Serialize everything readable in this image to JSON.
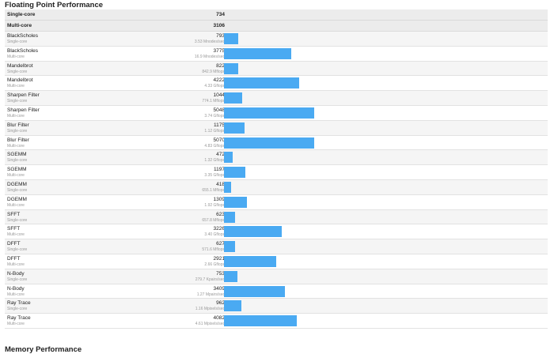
{
  "title": "Floating Point Performance",
  "summary": [
    {
      "label": "Single-core",
      "score": "734"
    },
    {
      "label": "Multi-core",
      "score": "3106"
    }
  ],
  "bar_color": "#4aaaf2",
  "rows": [
    {
      "name": "BlackScholes",
      "mode": "Single-core",
      "score": "793",
      "rate": "3.53 Mnodes/sec",
      "value": 793
    },
    {
      "name": "BlackScholes",
      "mode": "Multi-core",
      "score": "3775",
      "rate": "16.9 Mnodes/sec",
      "value": 3775
    },
    {
      "name": "Mandelbrot",
      "mode": "Single-core",
      "score": "822",
      "rate": "842.9 Mflops",
      "value": 822
    },
    {
      "name": "Mandelbrot",
      "mode": "Multi-core",
      "score": "4222",
      "rate": "4.33 Gflops",
      "value": 4222
    },
    {
      "name": "Sharpen Filter",
      "mode": "Single-core",
      "score": "1044",
      "rate": "774.1 Mflops",
      "value": 1044
    },
    {
      "name": "Sharpen Filter",
      "mode": "Multi-core",
      "score": "5048",
      "rate": "3.74 Gflops",
      "value": 5048
    },
    {
      "name": "Blur Filter",
      "mode": "Single-core",
      "score": "1175",
      "rate": "1.12 Gflops",
      "value": 1175
    },
    {
      "name": "Blur Filter",
      "mode": "Multi-core",
      "score": "5070",
      "rate": "4.83 Gflops",
      "value": 5070
    },
    {
      "name": "SGEMM",
      "mode": "Single-core",
      "score": "472",
      "rate": "1.32 Gflops",
      "value": 472
    },
    {
      "name": "SGEMM",
      "mode": "Multi-core",
      "score": "1197",
      "rate": "3.35 Gflops",
      "value": 1197
    },
    {
      "name": "DGEMM",
      "mode": "Single-core",
      "score": "418",
      "rate": "655.1 Mflops",
      "value": 418
    },
    {
      "name": "DGEMM",
      "mode": "Multi-core",
      "score": "1309",
      "rate": "1.92 Gflops",
      "value": 1309
    },
    {
      "name": "SFFT",
      "mode": "Single-core",
      "score": "623",
      "rate": "657.8 Mflops",
      "value": 623
    },
    {
      "name": "SFFT",
      "mode": "Multi-core",
      "score": "3226",
      "rate": "3.40 Gflops",
      "value": 3226
    },
    {
      "name": "DFFT",
      "mode": "Single-core",
      "score": "627",
      "rate": "571.6 Mflops",
      "value": 627
    },
    {
      "name": "DFFT",
      "mode": "Multi-core",
      "score": "2921",
      "rate": "2.66 Gflops",
      "value": 2921
    },
    {
      "name": "N-Body",
      "mode": "Single-core",
      "score": "753",
      "rate": "279.7 Kpairs/sec",
      "value": 753
    },
    {
      "name": "N-Body",
      "mode": "Multi-core",
      "score": "3409",
      "rate": "1.27 Mpairs/sec",
      "value": 3409
    },
    {
      "name": "Ray Trace",
      "mode": "Single-core",
      "score": "962",
      "rate": "1.16 Mpixels/sec",
      "value": 962
    },
    {
      "name": "Ray Trace",
      "mode": "Multi-core",
      "score": "4082",
      "rate": "4.61 Mpixels/sec",
      "value": 4082
    }
  ],
  "scale_max": 5070,
  "next_section": "Memory Performance"
}
